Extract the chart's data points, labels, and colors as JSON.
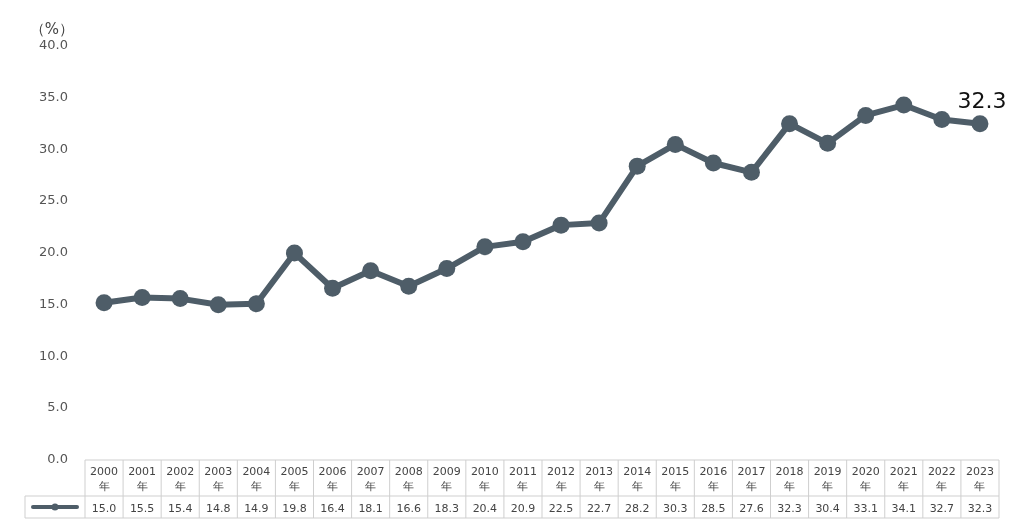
{
  "chart_data": {
    "type": "line",
    "ylabel": "（%）",
    "categories": [
      "2000年",
      "2001年",
      "2002年",
      "2003年",
      "2004年",
      "2005年",
      "2006年",
      "2007年",
      "2008年",
      "2009年",
      "2010年",
      "2011年",
      "2012年",
      "2013年",
      "2014年",
      "2015年",
      "2016年",
      "2017年",
      "2018年",
      "2019年",
      "2020年",
      "2021年",
      "2022年",
      "2023年"
    ],
    "values": [
      15.0,
      15.5,
      15.4,
      14.8,
      14.9,
      19.8,
      16.4,
      18.1,
      16.6,
      18.3,
      20.4,
      20.9,
      22.5,
      22.7,
      28.2,
      30.3,
      28.5,
      27.6,
      32.3,
      30.4,
      33.1,
      34.1,
      32.7,
      32.3
    ],
    "value_labels": [
      "15.0",
      "15.5",
      "15.4",
      "14.8",
      "14.9",
      "19.8",
      "16.4",
      "18.1",
      "16.6",
      "18.3",
      "20.4",
      "20.9",
      "22.5",
      "22.7",
      "28.2",
      "30.3",
      "28.5",
      "27.6",
      "32.3",
      "30.4",
      "33.1",
      "34.1",
      "32.7",
      "32.3"
    ],
    "color": "#4e5d68",
    "marker": "circle",
    "line_style": "solid",
    "ylim": [
      0,
      40
    ],
    "yticks": [
      {
        "value": 0,
        "label": "0.0"
      },
      {
        "value": 5,
        "label": "5.0"
      },
      {
        "value": 10,
        "label": "10.0"
      },
      {
        "value": 15,
        "label": "15.0"
      },
      {
        "value": 20,
        "label": "20.0"
      },
      {
        "value": 25,
        "label": "25.0"
      },
      {
        "value": 30,
        "label": "30.0"
      },
      {
        "value": 35,
        "label": "35.0"
      },
      {
        "value": 40,
        "label": "40.0"
      }
    ],
    "annotations": [
      "32.3"
    ]
  }
}
